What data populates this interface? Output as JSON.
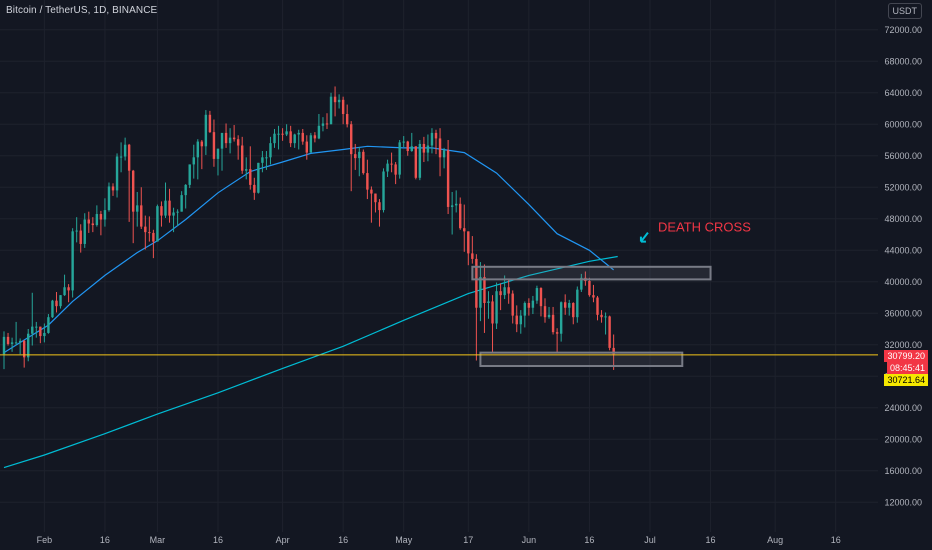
{
  "symbol": {
    "title": "Bitcoin / TetherUS, 1D, BINANCE",
    "currency": "USDT"
  },
  "price_scale": {
    "ticks": [
      "72000.00",
      "68000.00",
      "64000.00",
      "60000.00",
      "56000.00",
      "52000.00",
      "48000.00",
      "44000.00",
      "40000.00",
      "36000.00",
      "32000.00",
      "28000.00",
      "24000.00",
      "20000.00",
      "16000.00",
      "12000.00"
    ],
    "current_price": "30799.20",
    "countdown": "08:45:41",
    "level_price": "30721.64"
  },
  "time_axis": {
    "labels": [
      "Feb",
      "16",
      "Mar",
      "16",
      "Apr",
      "16",
      "May",
      "17",
      "Jun",
      "16",
      "Jul",
      "16",
      "Aug",
      "16"
    ]
  },
  "annotation": {
    "text": "DEATH CROSS"
  },
  "colors": {
    "background": "#131722",
    "up": "#26a69a",
    "down": "#ef5350",
    "ma_fast": "#2196f3",
    "ma_slow": "#00bcd4",
    "level_line": "#f5c518",
    "annotation": "#f23645",
    "zone_box": "#787b86"
  },
  "chart_data": {
    "type": "candlestick",
    "title": "Bitcoin / TetherUS, 1D, BINANCE",
    "xlabel": "",
    "ylabel": "",
    "ylim": [
      10000,
      74000
    ],
    "x_range": [
      "2021-01-22",
      "2021-08-24"
    ],
    "grid": true,
    "candles": [
      [
        "2021-01-22",
        30800,
        33700,
        28900,
        33000
      ],
      [
        "2021-01-23",
        33000,
        33500,
        31900,
        32100
      ],
      [
        "2021-01-24",
        32100,
        32900,
        31100,
        32300
      ],
      [
        "2021-01-25",
        32300,
        34900,
        31900,
        32300
      ],
      [
        "2021-01-26",
        32300,
        32800,
        30800,
        32500
      ],
      [
        "2021-01-27",
        32500,
        32600,
        29100,
        30400
      ],
      [
        "2021-01-28",
        30400,
        34000,
        29900,
        33400
      ],
      [
        "2021-01-29",
        33400,
        38600,
        31900,
        34300
      ],
      [
        "2021-01-30",
        34300,
        34900,
        32900,
        34300
      ],
      [
        "2021-01-31",
        34300,
        34300,
        32200,
        33100
      ],
      [
        "2021-02-01",
        33100,
        34700,
        32300,
        33500
      ],
      [
        "2021-02-02",
        33500,
        35900,
        33400,
        35500
      ],
      [
        "2021-02-03",
        35500,
        37700,
        35400,
        37600
      ],
      [
        "2021-02-04",
        37600,
        38700,
        36100,
        36900
      ],
      [
        "2021-02-05",
        36900,
        38300,
        36600,
        38300
      ],
      [
        "2021-02-06",
        38300,
        40900,
        38200,
        39300
      ],
      [
        "2021-02-07",
        39300,
        39700,
        37400,
        38900
      ],
      [
        "2021-02-08",
        38900,
        46800,
        38000,
        46400
      ],
      [
        "2021-02-09",
        46400,
        48200,
        45000,
        46500
      ],
      [
        "2021-02-10",
        46500,
        47300,
        43700,
        44800
      ],
      [
        "2021-02-11",
        44800,
        48700,
        44300,
        47900
      ],
      [
        "2021-02-12",
        47900,
        48900,
        46200,
        47400
      ],
      [
        "2021-02-13",
        47400,
        48200,
        46300,
        47200
      ],
      [
        "2021-02-14",
        47200,
        49700,
        47000,
        48600
      ],
      [
        "2021-02-15",
        48600,
        49000,
        45900,
        47900
      ],
      [
        "2021-02-16",
        47900,
        50600,
        47000,
        49100
      ],
      [
        "2021-02-17",
        49100,
        52600,
        48900,
        52100
      ],
      [
        "2021-02-18",
        52100,
        52500,
        50900,
        51600
      ],
      [
        "2021-02-19",
        51600,
        56300,
        50700,
        55900
      ],
      [
        "2021-02-20",
        55900,
        57700,
        53900,
        55900
      ],
      [
        "2021-02-21",
        55900,
        58300,
        55400,
        57400
      ],
      [
        "2021-02-22",
        57400,
        57500,
        47600,
        54100
      ],
      [
        "2021-02-23",
        54100,
        54200,
        44900,
        48900
      ],
      [
        "2021-02-24",
        48900,
        51400,
        47000,
        49700
      ],
      [
        "2021-02-25",
        49700,
        52000,
        46700,
        47000
      ],
      [
        "2021-02-26",
        47000,
        48400,
        44100,
        46300
      ],
      [
        "2021-02-27",
        46300,
        48300,
        45100,
        46200
      ],
      [
        "2021-02-28",
        46200,
        46600,
        43000,
        45100
      ],
      [
        "2021-03-01",
        45100,
        49800,
        45100,
        49600
      ],
      [
        "2021-03-02",
        49600,
        50200,
        47000,
        48400
      ],
      [
        "2021-03-03",
        48400,
        52600,
        48100,
        50300
      ],
      [
        "2021-03-04",
        50300,
        51800,
        47500,
        48400
      ],
      [
        "2021-03-05",
        48400,
        49400,
        46300,
        48800
      ],
      [
        "2021-03-06",
        48800,
        49200,
        47100,
        48900
      ],
      [
        "2021-03-07",
        48900,
        51500,
        48900,
        51000
      ],
      [
        "2021-03-08",
        51000,
        52400,
        49300,
        52300
      ],
      [
        "2021-03-09",
        52300,
        54900,
        51900,
        54900
      ],
      [
        "2021-03-10",
        54900,
        57400,
        53100,
        55800
      ],
      [
        "2021-03-11",
        55800,
        58100,
        53000,
        57800
      ],
      [
        "2021-03-12",
        57800,
        58000,
        54300,
        57200
      ],
      [
        "2021-03-13",
        57200,
        61800,
        56100,
        61200
      ],
      [
        "2021-03-14",
        61200,
        61700,
        58900,
        59000
      ],
      [
        "2021-03-15",
        59000,
        60600,
        54600,
        55600
      ],
      [
        "2021-03-16",
        55600,
        56900,
        53500,
        56900
      ],
      [
        "2021-03-17",
        56900,
        58900,
        54100,
        58900
      ],
      [
        "2021-03-18",
        58900,
        60100,
        57000,
        57600
      ],
      [
        "2021-03-19",
        57600,
        59500,
        56300,
        58300
      ],
      [
        "2021-03-20",
        58300,
        59900,
        57800,
        58100
      ],
      [
        "2021-03-21",
        58100,
        58600,
        55500,
        57300
      ],
      [
        "2021-03-22",
        57300,
        58400,
        53700,
        54100
      ],
      [
        "2021-03-23",
        54100,
        55800,
        53000,
        54300
      ],
      [
        "2021-03-24",
        54300,
        57200,
        51700,
        52300
      ],
      [
        "2021-03-25",
        52300,
        53200,
        50400,
        51300
      ],
      [
        "2021-03-26",
        51300,
        55100,
        51200,
        55100
      ],
      [
        "2021-03-27",
        55100,
        56600,
        53900,
        55800
      ],
      [
        "2021-03-28",
        55800,
        56600,
        54200,
        55800
      ],
      [
        "2021-03-29",
        55800,
        58400,
        54900,
        57600
      ],
      [
        "2021-03-30",
        57600,
        59400,
        57000,
        58800
      ],
      [
        "2021-03-31",
        58800,
        59800,
        56800,
        58800
      ],
      [
        "2021-04-01",
        58800,
        59500,
        57900,
        58700
      ],
      [
        "2021-04-02",
        58700,
        60000,
        58500,
        59100
      ],
      [
        "2021-04-03",
        59100,
        59800,
        57100,
        57600
      ],
      [
        "2021-04-04",
        57600,
        58800,
        57000,
        58700
      ],
      [
        "2021-04-05",
        58700,
        59300,
        56800,
        58900
      ],
      [
        "2021-04-06",
        58900,
        59400,
        57400,
        57800
      ],
      [
        "2021-04-07",
        57800,
        58600,
        55500,
        56400
      ],
      [
        "2021-04-08",
        56400,
        58900,
        56400,
        58600
      ],
      [
        "2021-04-09",
        58600,
        59000,
        57700,
        58200
      ],
      [
        "2021-04-10",
        58200,
        61300,
        58100,
        59800
      ],
      [
        "2021-04-11",
        59800,
        60900,
        59100,
        60100
      ],
      [
        "2021-04-12",
        60100,
        61400,
        59400,
        60000
      ],
      [
        "2021-04-13",
        60000,
        64000,
        60000,
        63500
      ],
      [
        "2021-04-14",
        63500,
        64800,
        61000,
        62800
      ],
      [
        "2021-04-15",
        62800,
        63800,
        62000,
        63100
      ],
      [
        "2021-04-16",
        63100,
        63500,
        60000,
        61300
      ],
      [
        "2021-04-17",
        61300,
        62500,
        59600,
        60000
      ],
      [
        "2021-04-18",
        60000,
        60400,
        51500,
        56200
      ],
      [
        "2021-04-19",
        56200,
        57500,
        54200,
        55700
      ],
      [
        "2021-04-20",
        55700,
        57100,
        53400,
        56500
      ],
      [
        "2021-04-21",
        56500,
        56800,
        53600,
        53800
      ],
      [
        "2021-04-22",
        53800,
        55500,
        50500,
        51700
      ],
      [
        "2021-04-23",
        51700,
        52100,
        47500,
        51200
      ],
      [
        "2021-04-24",
        51200,
        51200,
        48800,
        50100
      ],
      [
        "2021-04-25",
        50100,
        50500,
        47000,
        49100
      ],
      [
        "2021-04-26",
        49100,
        54400,
        48800,
        54000
      ],
      [
        "2021-04-27",
        54000,
        55500,
        53300,
        55000
      ],
      [
        "2021-04-28",
        55000,
        56400,
        53900,
        54900
      ],
      [
        "2021-04-29",
        54900,
        55200,
        52400,
        53600
      ],
      [
        "2021-04-30",
        53600,
        58000,
        53100,
        57700
      ],
      [
        "2021-05-01",
        57700,
        58500,
        57100,
        57800
      ],
      [
        "2021-05-02",
        57800,
        57900,
        56000,
        56600
      ],
      [
        "2021-05-03",
        56600,
        58900,
        56500,
        57200
      ],
      [
        "2021-05-04",
        57200,
        57200,
        53000,
        53200
      ],
      [
        "2021-05-05",
        53200,
        58000,
        52900,
        57500
      ],
      [
        "2021-05-06",
        57500,
        58400,
        55200,
        56400
      ],
      [
        "2021-05-07",
        56400,
        58700,
        55300,
        57300
      ],
      [
        "2021-05-08",
        57300,
        59500,
        56300,
        58900
      ],
      [
        "2021-05-09",
        58900,
        59300,
        56200,
        58200
      ],
      [
        "2021-05-10",
        58200,
        59500,
        53400,
        55800
      ],
      [
        "2021-05-11",
        55800,
        57000,
        54400,
        56700
      ],
      [
        "2021-05-12",
        56700,
        58000,
        48600,
        49500
      ],
      [
        "2021-05-13",
        49500,
        51400,
        46000,
        49700
      ],
      [
        "2021-05-14",
        49700,
        51600,
        48800,
        49900
      ],
      [
        "2021-05-15",
        49900,
        50700,
        46600,
        46800
      ],
      [
        "2021-05-16",
        46800,
        49800,
        43800,
        46400
      ],
      [
        "2021-05-17",
        46400,
        46400,
        42100,
        43600
      ],
      [
        "2021-05-18",
        43600,
        45800,
        42300,
        42900
      ],
      [
        "2021-05-19",
        42900,
        43500,
        30000,
        36700
      ],
      [
        "2021-05-20",
        36700,
        42500,
        35000,
        40600
      ],
      [
        "2021-05-21",
        40600,
        42200,
        33500,
        37300
      ],
      [
        "2021-05-22",
        37300,
        38800,
        35300,
        37500
      ],
      [
        "2021-05-23",
        37500,
        38300,
        31100,
        34700
      ],
      [
        "2021-05-24",
        34700,
        39900,
        34000,
        38800
      ],
      [
        "2021-05-25",
        38800,
        39800,
        36400,
        38300
      ],
      [
        "2021-05-26",
        38300,
        40800,
        37800,
        39300
      ],
      [
        "2021-05-27",
        39300,
        40400,
        37200,
        38500
      ],
      [
        "2021-05-28",
        38500,
        38900,
        34700,
        35700
      ],
      [
        "2021-05-29",
        35700,
        37000,
        33600,
        34600
      ],
      [
        "2021-05-30",
        34600,
        36400,
        33400,
        35700
      ],
      [
        "2021-05-31",
        35700,
        37500,
        34200,
        37300
      ],
      [
        "2021-06-01",
        37300,
        37900,
        35700,
        36700
      ],
      [
        "2021-06-02",
        36700,
        38200,
        35900,
        37600
      ],
      [
        "2021-06-03",
        37600,
        39500,
        37200,
        39200
      ],
      [
        "2021-06-04",
        39200,
        39300,
        35600,
        36900
      ],
      [
        "2021-06-05",
        36900,
        37900,
        34800,
        35500
      ],
      [
        "2021-06-06",
        35500,
        36800,
        35300,
        35800
      ],
      [
        "2021-06-07",
        35800,
        36800,
        33300,
        33600
      ],
      [
        "2021-06-08",
        33600,
        34100,
        31000,
        33400
      ],
      [
        "2021-06-09",
        33400,
        37500,
        32400,
        37400
      ],
      [
        "2021-06-10",
        37400,
        38400,
        35800,
        36700
      ],
      [
        "2021-06-11",
        36700,
        37700,
        35700,
        37300
      ],
      [
        "2021-06-12",
        37300,
        37400,
        34600,
        35500
      ],
      [
        "2021-06-13",
        35500,
        39400,
        34800,
        39000
      ],
      [
        "2021-06-14",
        39000,
        41000,
        38700,
        40500
      ],
      [
        "2021-06-15",
        40500,
        41300,
        39500,
        40100
      ],
      [
        "2021-06-16",
        40100,
        40500,
        38100,
        38300
      ],
      [
        "2021-06-17",
        38300,
        39600,
        37400,
        38000
      ],
      [
        "2021-06-18",
        38000,
        38200,
        35100,
        35800
      ],
      [
        "2021-06-19",
        35800,
        36400,
        34800,
        35500
      ],
      [
        "2021-06-20",
        35500,
        36100,
        33300,
        35600
      ],
      [
        "2021-06-21",
        35600,
        35700,
        31300,
        31600
      ],
      [
        "2021-06-22",
        31600,
        33300,
        28800,
        30800
      ]
    ],
    "series": [
      {
        "name": "",
        "color": "#2196f3",
        "points": [
          [
            "2021-01-22",
            31000
          ],
          [
            "2021-01-27",
            32600
          ],
          [
            "2021-02-02",
            34500
          ],
          [
            "2021-02-08",
            37500
          ],
          [
            "2021-02-16",
            40800
          ],
          [
            "2021-02-24",
            43700
          ],
          [
            "2021-03-01",
            45200
          ],
          [
            "2021-03-08",
            47900
          ],
          [
            "2021-03-16",
            51300
          ],
          [
            "2021-03-24",
            54000
          ],
          [
            "2021-04-01",
            55200
          ],
          [
            "2021-04-08",
            56300
          ],
          [
            "2021-04-16",
            56800
          ],
          [
            "2021-04-22",
            57200
          ],
          [
            "2021-05-01",
            57000
          ],
          [
            "2021-05-08",
            57000
          ],
          [
            "2021-05-16",
            56400
          ],
          [
            "2021-05-24",
            53800
          ],
          [
            "2021-06-01",
            49800
          ],
          [
            "2021-06-08",
            46100
          ],
          [
            "2021-06-16",
            44000
          ],
          [
            "2021-06-22",
            41500
          ]
        ]
      },
      {
        "name": "",
        "color": "#00bcd4",
        "points": [
          [
            "2021-01-22",
            16400
          ],
          [
            "2021-02-01",
            18000
          ],
          [
            "2021-02-16",
            20700
          ],
          [
            "2021-03-01",
            23200
          ],
          [
            "2021-03-16",
            25900
          ],
          [
            "2021-04-01",
            29000
          ],
          [
            "2021-04-16",
            31800
          ],
          [
            "2021-05-01",
            35100
          ],
          [
            "2021-05-17",
            38500
          ],
          [
            "2021-06-01",
            40800
          ],
          [
            "2021-06-16",
            42600
          ],
          [
            "2021-06-23",
            43200
          ]
        ]
      }
    ],
    "horizontal_lines": [
      {
        "y": 30721.64,
        "color": "#f5c518"
      }
    ],
    "zones": [
      {
        "x0": "2021-05-18",
        "x1": "2021-07-16",
        "y0": 40300,
        "y1": 41900
      },
      {
        "x0": "2021-05-20",
        "x1": "2021-07-09",
        "y0": 29300,
        "y1": 31000
      }
    ]
  }
}
